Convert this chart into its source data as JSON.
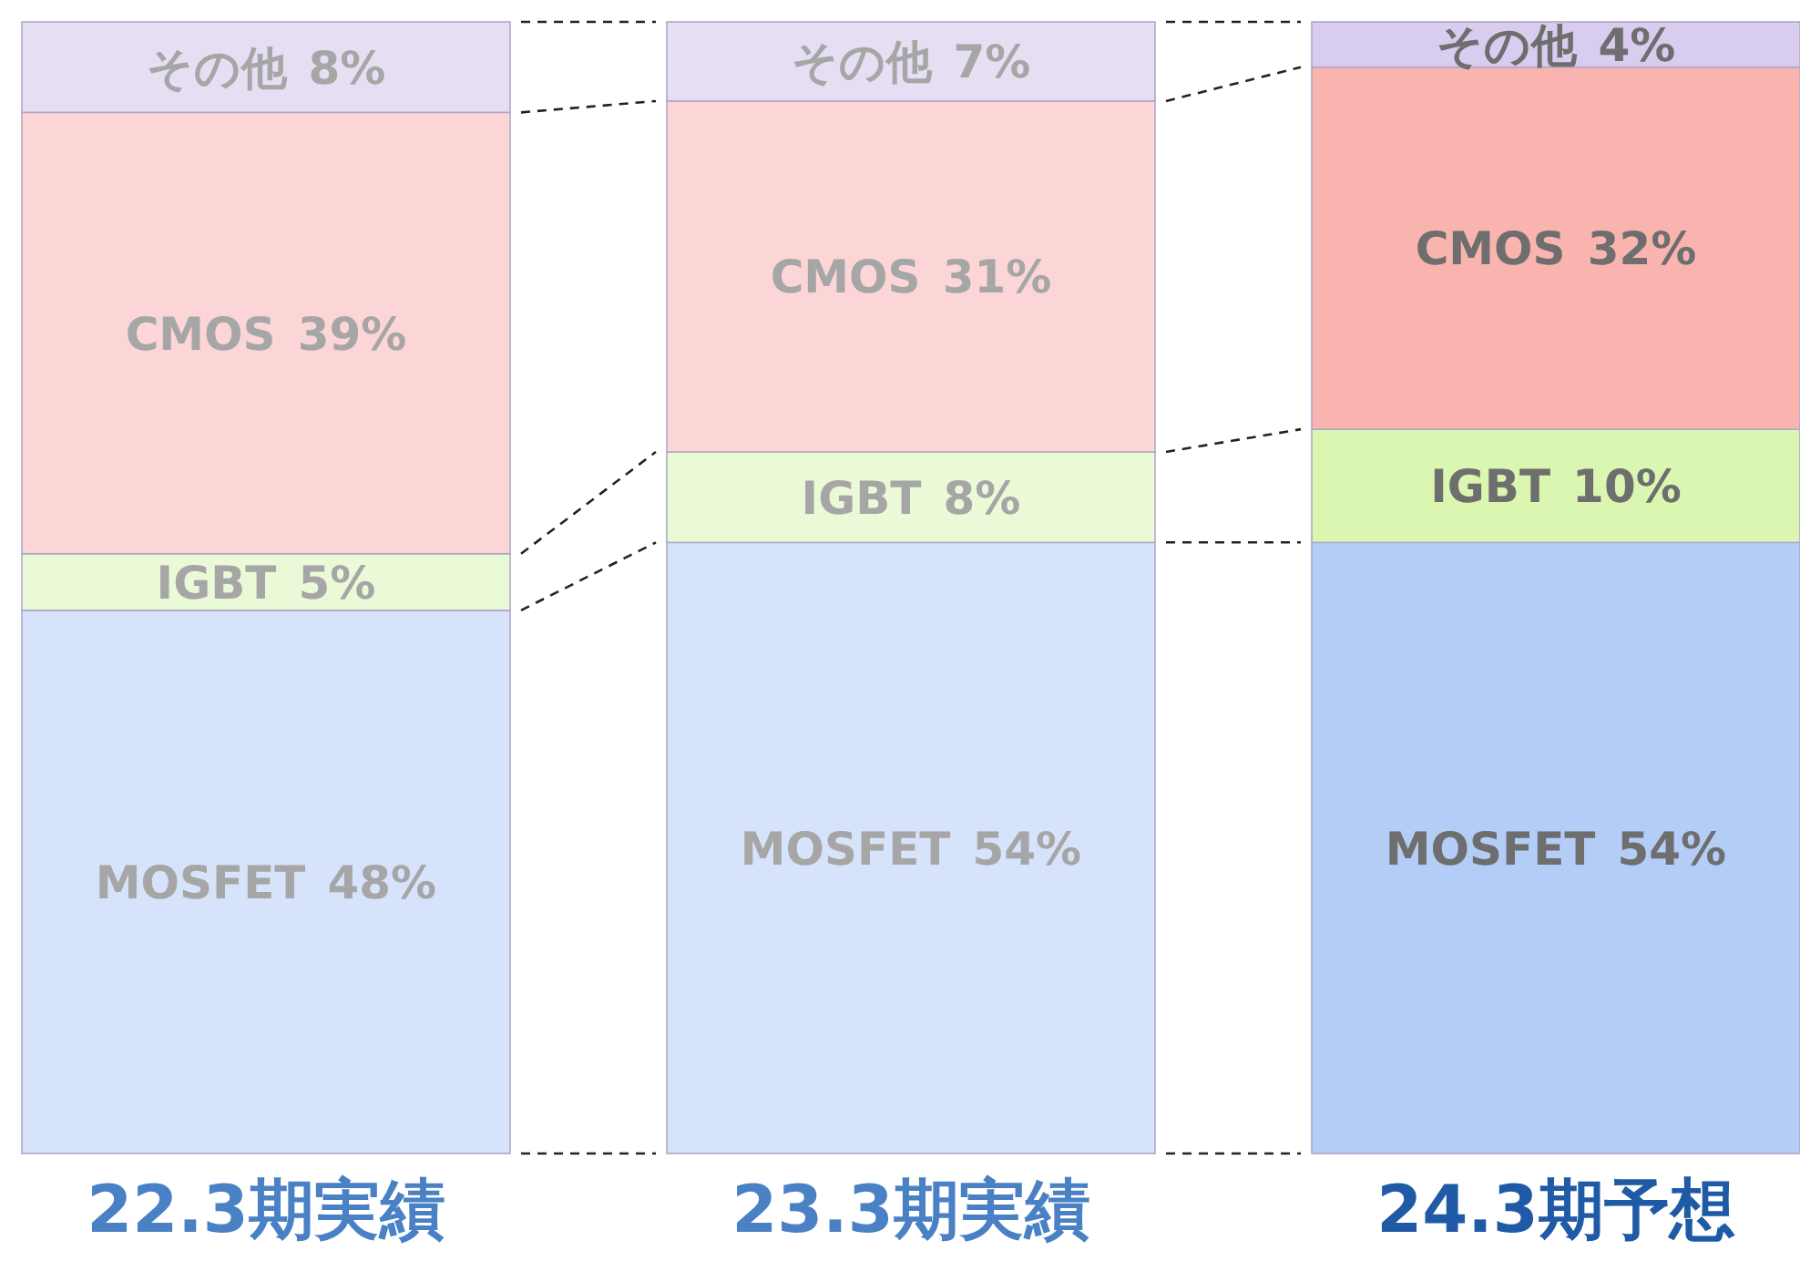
{
  "chart_data": {
    "type": "bar",
    "stacked": true,
    "categories": [
      "22.3期実績",
      "23.3期実績",
      "24.3期予想"
    ],
    "series": [
      {
        "name": "MOSFET",
        "colors": [
          "#d6e3fa",
          "#d6e3fa",
          "#b4cdf7"
        ],
        "values": [
          48,
          54,
          54
        ],
        "value_labels": [
          "48%",
          "54%",
          "54%"
        ]
      },
      {
        "name": "IGBT",
        "colors": [
          "#ebfad6",
          "#ebfad6",
          "#daf6b0"
        ],
        "values": [
          5,
          8,
          10
        ],
        "value_labels": [
          "5%",
          "8%",
          "10%"
        ]
      },
      {
        "name": "CMOS",
        "colors": [
          "#fcd6d6",
          "#fcd6d6",
          "#f9b4b0"
        ],
        "values": [
          39,
          31,
          32
        ],
        "value_labels": [
          "39%",
          "31%",
          "32%"
        ]
      },
      {
        "name": "その他",
        "colors": [
          "#e6def3",
          "#e6def3",
          "#d8ccef"
        ],
        "values": [
          8,
          7,
          4
        ],
        "value_labels": [
          "8%",
          "7%",
          "4%"
        ]
      }
    ]
  }
}
